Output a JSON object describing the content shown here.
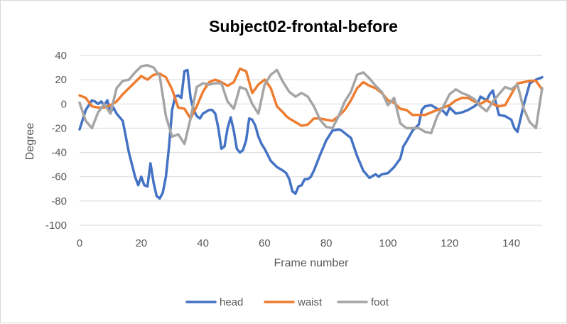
{
  "chart_data": {
    "type": "line",
    "title": "Subject02-frontal-before",
    "xlabel": "Frame number",
    "ylabel": "Degree",
    "xlim": [
      0,
      150
    ],
    "ylim": [
      -100,
      40
    ],
    "x_ticks": [
      "0",
      "20",
      "40",
      "60",
      "80",
      "100",
      "120",
      "140"
    ],
    "y_ticks": [
      "40",
      "20",
      "0",
      "-20",
      "-40",
      "-60",
      "-80",
      "-100"
    ],
    "grid": true,
    "legend_position": "bottom",
    "series": [
      {
        "name": "head",
        "color": "#4472c4",
        "x": [
          0,
          2,
          4,
          5,
          6,
          7,
          8,
          9,
          10,
          11,
          12,
          14,
          16,
          18,
          19,
          20,
          21,
          22,
          23,
          24,
          25,
          26,
          27,
          28,
          29,
          30,
          31,
          32,
          33,
          34,
          35,
          36,
          37,
          38,
          39,
          40,
          42,
          43,
          44,
          45,
          46,
          47,
          48,
          49,
          50,
          51,
          52,
          53,
          54,
          55,
          56,
          57,
          58,
          59,
          60,
          62,
          64,
          66,
          67,
          68,
          69,
          70,
          71,
          72,
          73,
          74,
          75,
          76,
          78,
          80,
          82,
          84,
          85,
          86,
          88,
          90,
          92,
          94,
          96,
          97,
          98,
          100,
          102,
          104,
          105,
          106,
          108,
          110,
          111,
          112,
          114,
          116,
          118,
          119,
          120,
          122,
          124,
          126,
          128,
          129,
          130,
          132,
          133,
          134,
          136,
          138,
          140,
          141,
          142,
          144,
          145,
          146,
          148,
          150
        ],
        "y": [
          -21,
          -5,
          3,
          2,
          0,
          2,
          -1,
          3,
          -7,
          -3,
          -8,
          -14,
          -40,
          -60,
          -67,
          -60,
          -67,
          -68,
          -49,
          -65,
          -76,
          -78,
          -73,
          -60,
          -35,
          -5,
          6,
          7,
          5,
          27,
          28,
          5,
          -5,
          -10,
          -12,
          -8,
          -5,
          -5,
          -8,
          -20,
          -37,
          -35,
          -20,
          -11,
          -22,
          -37,
          -40,
          -38,
          -30,
          -12,
          -13,
          -18,
          -27,
          -33,
          -37,
          -47,
          -52,
          -55,
          -57,
          -62,
          -72,
          -74,
          -68,
          -67,
          -62,
          -62,
          -60,
          -55,
          -42,
          -30,
          -22,
          -21,
          -22,
          -24,
          -28,
          -43,
          -55,
          -61,
          -58,
          -60,
          -58,
          -57,
          -52,
          -45,
          -35,
          -31,
          -22,
          -17,
          -5,
          -2,
          -1,
          -4,
          -6,
          -9,
          -3,
          -8,
          -7,
          -5,
          -2,
          0,
          6,
          3,
          8,
          11,
          -9,
          -10,
          -13,
          -20,
          -23,
          -1,
          8,
          17,
          20,
          22
        ]
      },
      {
        "name": "waist",
        "color": "#ed7d31",
        "x": [
          0,
          2,
          4,
          6,
          8,
          10,
          12,
          14,
          16,
          18,
          20,
          22,
          24,
          26,
          28,
          30,
          32,
          34,
          36,
          38,
          40,
          42,
          44,
          46,
          48,
          50,
          52,
          54,
          56,
          58,
          60,
          62,
          64,
          66,
          67,
          68,
          70,
          72,
          74,
          76,
          78,
          80,
          82,
          84,
          86,
          88,
          90,
          92,
          94,
          96,
          98,
          100,
          102,
          104,
          106,
          108,
          110,
          112,
          114,
          116,
          118,
          120,
          122,
          124,
          126,
          128,
          130,
          132,
          134,
          136,
          138,
          140,
          142,
          144,
          146,
          148,
          150
        ],
        "y": [
          7,
          5,
          -2,
          -3,
          -3,
          -1,
          2,
          8,
          13,
          18,
          23,
          20,
          24,
          25,
          22,
          12,
          -3,
          -4,
          -12,
          -2,
          10,
          18,
          20,
          18,
          15,
          18,
          29,
          27,
          9,
          16,
          20,
          13,
          -2,
          -7,
          -10,
          -12,
          -15,
          -18,
          -17,
          -12,
          -12,
          -13,
          -14,
          -10,
          -5,
          3,
          13,
          18,
          15,
          13,
          9,
          3,
          1,
          -4,
          -5,
          -9,
          -9,
          -9,
          -7,
          -5,
          -3,
          -1,
          3,
          5,
          5,
          2,
          0,
          3,
          0,
          -2,
          -1,
          8,
          17,
          18,
          19,
          19,
          12
        ]
      },
      {
        "name": "foot",
        "color": "#a5a5a5",
        "x": [
          0,
          2,
          4,
          6,
          8,
          10,
          12,
          14,
          16,
          18,
          20,
          22,
          24,
          26,
          28,
          30,
          32,
          34,
          36,
          38,
          40,
          42,
          44,
          46,
          48,
          50,
          52,
          54,
          56,
          58,
          60,
          62,
          64,
          66,
          68,
          70,
          72,
          74,
          76,
          78,
          80,
          82,
          84,
          86,
          88,
          90,
          92,
          94,
          96,
          98,
          100,
          102,
          104,
          106,
          108,
          110,
          112,
          114,
          116,
          118,
          120,
          122,
          124,
          126,
          128,
          130,
          132,
          134,
          136,
          138,
          140,
          142,
          144,
          146,
          148,
          150
        ],
        "y": [
          1,
          -14,
          -20,
          -7,
          0,
          -8,
          13,
          19,
          20,
          26,
          31,
          32,
          30,
          23,
          -10,
          -27,
          -25,
          -33,
          -12,
          14,
          17,
          16,
          17,
          17,
          2,
          -4,
          14,
          12,
          0,
          -8,
          16,
          24,
          28,
          18,
          10,
          6,
          9,
          6,
          -2,
          -13,
          -19,
          -20,
          -10,
          2,
          10,
          24,
          26,
          21,
          15,
          10,
          -1,
          5,
          -16,
          -20,
          -20,
          -20,
          -23,
          -24,
          -10,
          -2,
          8,
          12,
          9,
          7,
          4,
          -2,
          -6,
          2,
          8,
          14,
          12,
          16,
          -4,
          -15,
          -20,
          13
        ]
      }
    ]
  }
}
